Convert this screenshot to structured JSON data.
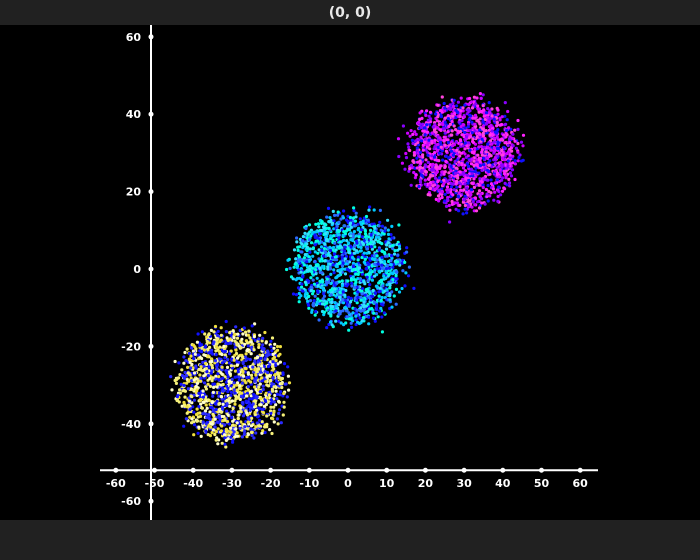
{
  "window": {
    "title": "(0, 0)"
  },
  "colors": {
    "background": "#000000",
    "chrome": "#212121",
    "axis": "#ffffff",
    "title_text": "#e8e8e8"
  },
  "chart_data": {
    "type": "scatter",
    "title": "",
    "xlabel": "",
    "ylabel": "",
    "xlim": [
      -65,
      65
    ],
    "ylim": [
      -65,
      65
    ],
    "x_ticks": [
      -60,
      -50,
      -40,
      -30,
      -20,
      -10,
      0,
      10,
      20,
      30,
      40,
      50,
      60
    ],
    "y_ticks": [
      60,
      40,
      20,
      0,
      -20,
      -40,
      -60
    ],
    "grid": false,
    "legend": "none",
    "clusters": [
      {
        "center": [
          -30,
          -30
        ],
        "radius": 15,
        "colors": [
          "#f5f07a",
          "#ffffcc",
          "#f0e040",
          "#1010ff",
          "#2a2aff"
        ]
      },
      {
        "center": [
          0,
          0
        ],
        "radius": 15,
        "colors": [
          "#00c8ff",
          "#33e0ff",
          "#00ffe0",
          "#1010ff",
          "#2a6aff"
        ]
      },
      {
        "center": [
          30,
          30
        ],
        "radius": 15,
        "colors": [
          "#ff22ff",
          "#cc00ff",
          "#ff44dd",
          "#1010ff",
          "#8a00ff"
        ]
      }
    ]
  }
}
